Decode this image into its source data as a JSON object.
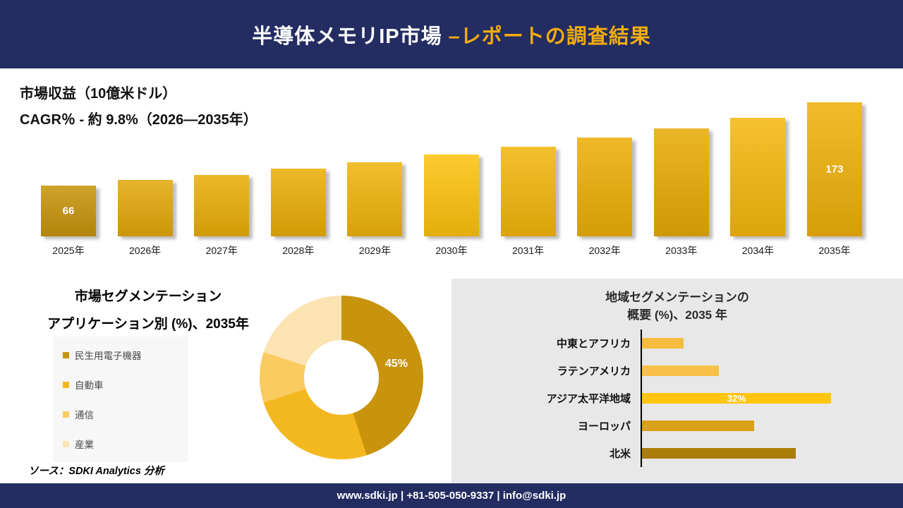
{
  "header": {
    "title_white": "半導体メモリIP市場 ",
    "title_gold": "–レポートの調査結果"
  },
  "footer": {
    "text": "www.sdki.jp | +81-505-050-9337 | info@sdki.jp"
  },
  "source_note": "ソース：SDKI Analytics 分析",
  "colors": {
    "navy": "#232d62",
    "gold_accent": "#f3ac0d",
    "panel_gray": "#e8e8e8"
  },
  "chart_data": [
    {
      "id": "market-revenue",
      "type": "bar",
      "title": "市場収益（10億米ドル）",
      "subtitle": "CAGR％ - 約 9.8%（2026―2035年）",
      "categories": [
        "2025年",
        "2026年",
        "2027年",
        "2028年",
        "2029年",
        "2030年",
        "2031年",
        "2032年",
        "2033年",
        "2034年",
        "2035年"
      ],
      "values": [
        66,
        72.5,
        79.6,
        87.4,
        96,
        105.4,
        115.8,
        127.1,
        139.6,
        153.3,
        173
      ],
      "value_labels": [
        "66",
        "",
        "",
        "",
        "",
        "",
        "",
        "",
        "",
        "",
        "173"
      ],
      "ylim": [
        0,
        173
      ],
      "bar_colors": [
        "#c6940a",
        "#e2a70b",
        "#e9ad06",
        "#e9ad06",
        "#efb409",
        "#fdc20d",
        "#f2b50a",
        "#ecae05",
        "#e7a905",
        "#f4b70b",
        "#eeb009"
      ],
      "grid": false,
      "legend": "none"
    },
    {
      "id": "application-segmentation",
      "type": "pie",
      "title": "市場セグメンテーション",
      "subtitle": "アプリケーション別 (%)、2035年",
      "segments": [
        {
          "label": "民生用電子機器",
          "value": 45,
          "display": "45%",
          "color": "#c8940d"
        },
        {
          "label": "自動車",
          "value": 25,
          "display": "",
          "color": "#f4b81f"
        },
        {
          "label": "通信",
          "value": 10,
          "display": "",
          "color": "#f9cb60"
        },
        {
          "label": "産業",
          "value": 20,
          "display": "",
          "color": "#fce3b2"
        }
      ],
      "legend": "left"
    },
    {
      "id": "regional-segmentation",
      "type": "bar",
      "orientation": "horizontal",
      "title_lines": [
        "地域セグメンテーションの",
        "概要 (%)、2035 年"
      ],
      "categories": [
        "中東とアフリカ",
        "ラテンアメリカ",
        "アジア太平洋地域",
        "ヨーロッパ",
        "北米"
      ],
      "values": [
        7,
        13,
        32,
        19,
        26
      ],
      "value_labels": [
        "",
        "",
        "32%",
        "",
        ""
      ],
      "xlim": [
        0,
        32
      ],
      "bar_colors": [
        "#f5bc3d",
        "#f7c148",
        "#ffc510",
        "#d9a018",
        "#aa7d08"
      ],
      "grid": false,
      "legend": "none"
    }
  ]
}
